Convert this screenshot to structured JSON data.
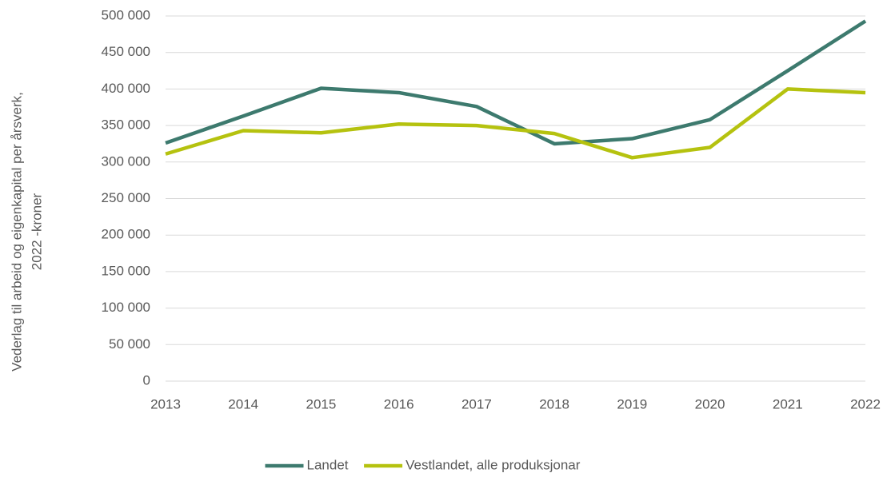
{
  "chart_data": {
    "type": "line",
    "ylabel": [
      "Vederlag til arbeid og eigenkapital per årsverk,",
      "2022 -kroner"
    ],
    "x": [
      2013,
      2014,
      2015,
      2016,
      2017,
      2018,
      2019,
      2020,
      2021,
      2022
    ],
    "xlim": [
      2013,
      2022
    ],
    "xticks": [
      2013,
      2014,
      2015,
      2016,
      2017,
      2018,
      2019,
      2020,
      2021,
      2022
    ],
    "ylim": [
      0,
      500000
    ],
    "yticks": [
      0,
      {
        "value": 50000,
        "label": "50 000"
      },
      {
        "value": 100000,
        "label": "100 000"
      },
      {
        "value": 150000,
        "label": "150 000"
      },
      {
        "value": 200000,
        "label": "200 000"
      },
      {
        "value": 250000,
        "label": "250 000"
      },
      {
        "value": 300000,
        "label": "300 000"
      },
      {
        "value": 350000,
        "label": "350 000"
      },
      {
        "value": 400000,
        "label": "400 000"
      },
      {
        "value": 450000,
        "label": "450 000"
      },
      {
        "value": 500000,
        "label": "500 000"
      }
    ],
    "grid": true,
    "legend": "bottom",
    "series": [
      {
        "name": "Landet",
        "color": "#3d7a6e",
        "values": [
          326000,
          363000,
          401000,
          395000,
          376000,
          325000,
          332000,
          358000,
          425000,
          493000
        ]
      },
      {
        "name": "Vestlandet, alle produksjonar",
        "color": "#b5c20f",
        "values": [
          311000,
          343000,
          340000,
          352000,
          350000,
          339000,
          306000,
          320000,
          400000,
          395000
        ]
      }
    ]
  }
}
